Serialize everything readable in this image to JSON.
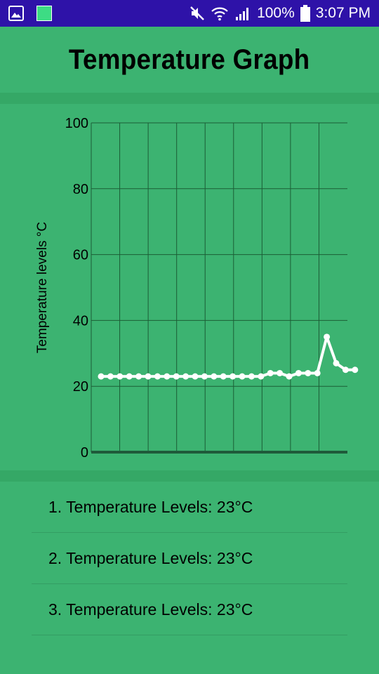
{
  "status_bar": {
    "battery": "100%",
    "time": "3:07 PM"
  },
  "header": {
    "title": "Temperature Graph"
  },
  "chart_data": {
    "type": "line",
    "ylabel": "Temperature levels °C",
    "xlabel": "",
    "ylim": [
      0,
      100
    ],
    "yticks": [
      "0",
      "20",
      "40",
      "60",
      "80",
      "100"
    ],
    "grid": true,
    "line_color": "#ffffff",
    "x": [
      1,
      2,
      3,
      4,
      5,
      6,
      7,
      8,
      9,
      10,
      11,
      12,
      13,
      14,
      15,
      16,
      17,
      18,
      19,
      20,
      21,
      22,
      23,
      24,
      25,
      26,
      27,
      28
    ],
    "values": [
      23,
      23,
      23,
      23,
      23,
      23,
      23,
      23,
      23,
      23,
      23,
      23,
      23,
      23,
      23,
      23,
      23,
      23,
      24,
      24,
      23,
      24,
      24,
      24,
      35,
      27,
      25,
      25
    ]
  },
  "readings": [
    "1. Temperature Levels: 23°C",
    "2. Temperature Levels: 23°C",
    "3. Temperature Levels: 23°C"
  ]
}
